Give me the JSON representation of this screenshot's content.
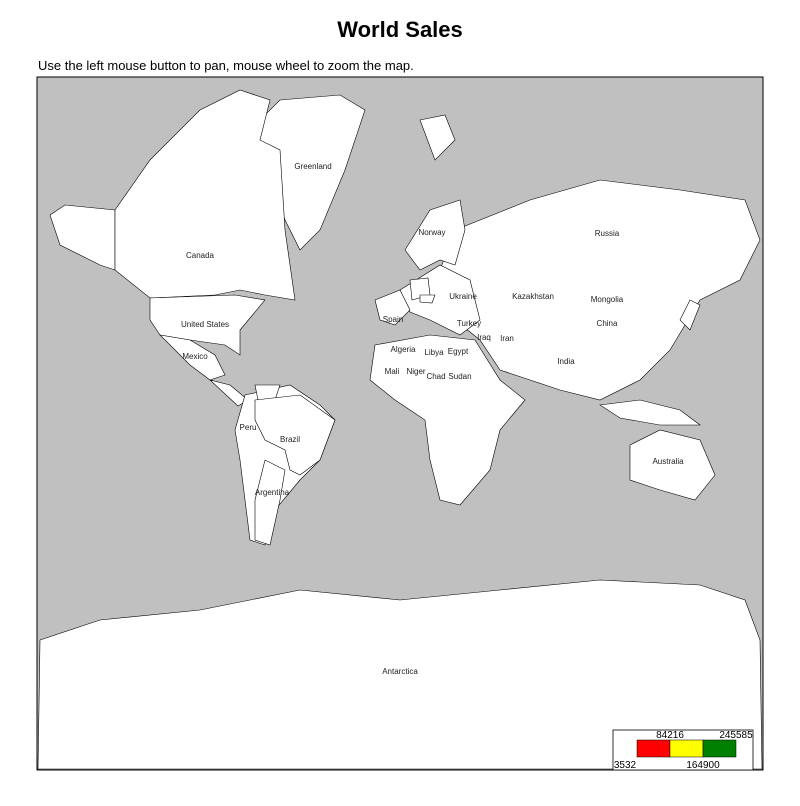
{
  "title": "World Sales",
  "subtitle": "Use the left mouse button to pan, mouse wheel to zoom the map.",
  "labels": [
    "Greenland",
    "Canada",
    "United States",
    "Mexico",
    "Peru",
    "Brazil",
    "Argentina",
    "Norway",
    "Spain",
    "Russia",
    "Kazakhstan",
    "Mongolia",
    "China",
    "Ukraine",
    "Turkey",
    "Iraq",
    "Iran",
    "Algeria",
    "Libya",
    "Egypt",
    "Mali",
    "Niger",
    "Chad",
    "Sudan",
    "India",
    "Australia",
    "Antarctica"
  ],
  "legend": {
    "breaks": [
      3532,
      84216,
      164900,
      245585
    ],
    "colors": [
      "#ff0000",
      "#ffff00",
      "#008000"
    ]
  }
}
